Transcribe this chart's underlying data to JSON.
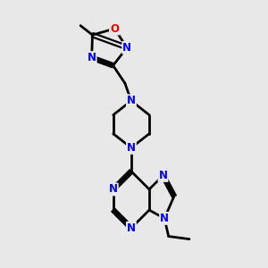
{
  "bg_color": "#e8e8e8",
  "bond_color": "#000000",
  "n_color": "#0000ff",
  "o_color": "#ff0000",
  "line_width": 2.0,
  "font_size": 8.5,
  "fig_size": [
    3.0,
    3.0
  ],
  "dpi": 100,
  "xlim": [
    0.05,
    0.85
  ],
  "ylim": [
    0.02,
    0.98
  ]
}
